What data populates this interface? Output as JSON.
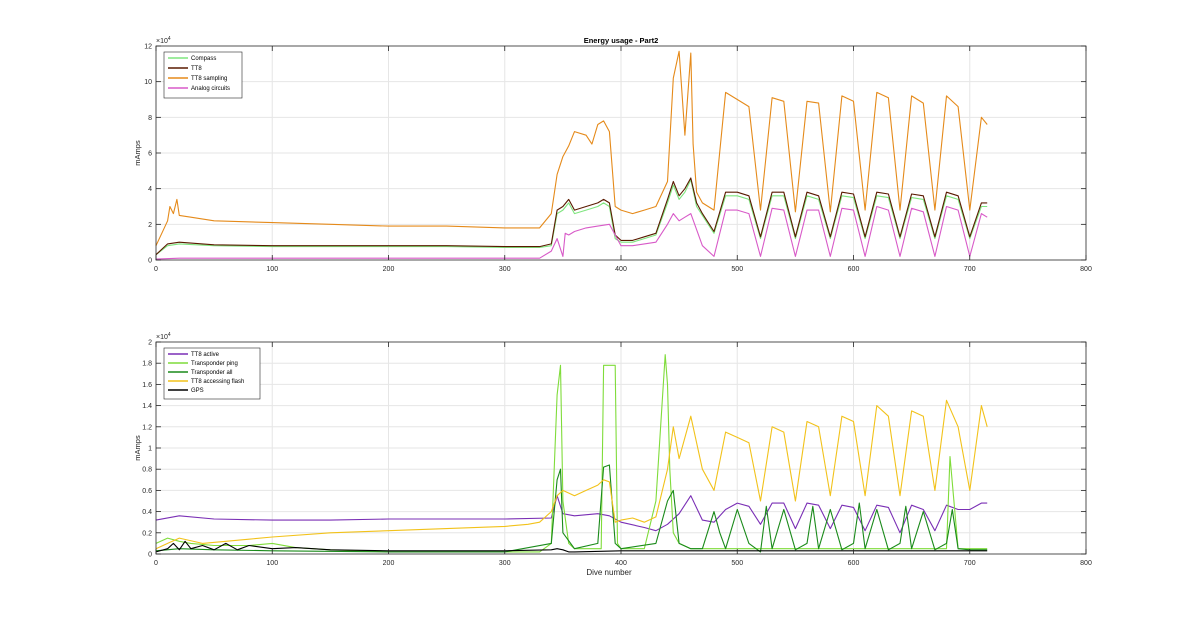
{
  "chart_data": [
    {
      "type": "line",
      "title": "Energy usage - Part2",
      "xlabel": "",
      "ylabel": "mAmps",
      "xlim": [
        0,
        800
      ],
      "ylim": [
        0,
        12
      ],
      "y_multiplier_label": "×10",
      "y_multiplier_exp": "4",
      "grid": true,
      "legend_position": "top-left",
      "xticks": [
        0,
        100,
        200,
        300,
        400,
        500,
        600,
        700,
        800
      ],
      "yticks": [
        0,
        2,
        4,
        6,
        8,
        10,
        12
      ],
      "series": [
        {
          "name": "Compass",
          "color": "#7fe57f",
          "x": [
            0,
            10,
            20,
            50,
            100,
            150,
            200,
            250,
            300,
            330,
            340,
            345,
            350,
            355,
            360,
            370,
            380,
            385,
            390,
            395,
            400,
            410,
            420,
            430,
            440,
            445,
            450,
            455,
            460,
            465,
            470,
            480,
            490,
            500,
            510,
            520,
            530,
            540,
            550,
            560,
            570,
            580,
            590,
            600,
            610,
            620,
            630,
            640,
            650,
            660,
            670,
            680,
            690,
            700,
            710,
            715
          ],
          "y": [
            0.3,
            0.8,
            0.9,
            0.8,
            0.75,
            0.75,
            0.75,
            0.75,
            0.7,
            0.7,
            0.8,
            2.6,
            2.8,
            3.2,
            2.6,
            2.8,
            3.0,
            3.2,
            3.0,
            1.2,
            1.0,
            1.0,
            1.2,
            1.4,
            3.2,
            4.2,
            3.4,
            3.8,
            4.5,
            3.0,
            2.5,
            1.5,
            3.6,
            3.6,
            3.4,
            1.2,
            3.6,
            3.6,
            1.2,
            3.6,
            3.4,
            1.2,
            3.6,
            3.5,
            1.2,
            3.6,
            3.5,
            1.2,
            3.5,
            3.4,
            1.2,
            3.6,
            3.4,
            1.2,
            3.0,
            3.0
          ]
        },
        {
          "name": "TT8",
          "color": "#5a1a00",
          "x": [
            0,
            10,
            20,
            50,
            100,
            150,
            200,
            250,
            300,
            330,
            340,
            345,
            350,
            355,
            360,
            370,
            380,
            385,
            390,
            395,
            400,
            410,
            420,
            430,
            440,
            445,
            450,
            455,
            460,
            465,
            470,
            480,
            490,
            500,
            510,
            520,
            530,
            540,
            550,
            560,
            570,
            580,
            590,
            600,
            610,
            620,
            630,
            640,
            650,
            660,
            670,
            680,
            690,
            700,
            710,
            715
          ],
          "y": [
            0.3,
            0.9,
            1.0,
            0.85,
            0.8,
            0.8,
            0.8,
            0.8,
            0.75,
            0.75,
            0.9,
            2.8,
            3.0,
            3.4,
            2.8,
            3.0,
            3.2,
            3.4,
            3.2,
            1.4,
            1.1,
            1.1,
            1.3,
            1.5,
            3.4,
            4.4,
            3.6,
            4.0,
            4.6,
            3.2,
            2.6,
            1.6,
            3.8,
            3.8,
            3.6,
            1.3,
            3.8,
            3.8,
            1.3,
            3.8,
            3.6,
            1.3,
            3.8,
            3.7,
            1.3,
            3.8,
            3.7,
            1.3,
            3.7,
            3.6,
            1.3,
            3.8,
            3.6,
            1.3,
            3.2,
            3.2
          ]
        },
        {
          "name": "TT8 sampling",
          "color": "#e58a1a",
          "x": [
            0,
            5,
            10,
            12,
            15,
            18,
            20,
            30,
            50,
            100,
            150,
            200,
            250,
            300,
            320,
            330,
            340,
            345,
            350,
            355,
            360,
            370,
            375,
            380,
            385,
            390,
            395,
            400,
            410,
            420,
            430,
            440,
            445,
            450,
            455,
            460,
            462,
            465,
            470,
            480,
            490,
            500,
            510,
            520,
            530,
            540,
            550,
            560,
            570,
            580,
            590,
            600,
            610,
            620,
            630,
            640,
            650,
            660,
            670,
            680,
            690,
            700,
            710,
            715
          ],
          "y": [
            0.8,
            1.5,
            2.2,
            3.0,
            2.6,
            3.4,
            2.5,
            2.4,
            2.2,
            2.1,
            2.0,
            1.9,
            1.9,
            1.8,
            1.8,
            1.8,
            2.6,
            4.8,
            5.8,
            6.4,
            7.2,
            7.0,
            6.5,
            7.6,
            7.8,
            7.2,
            3.0,
            2.8,
            2.6,
            2.8,
            3.0,
            4.4,
            10.2,
            11.7,
            7.0,
            11.6,
            6.5,
            3.8,
            3.2,
            2.8,
            9.4,
            9.0,
            8.6,
            2.8,
            9.1,
            8.9,
            2.7,
            8.9,
            8.8,
            2.7,
            9.2,
            8.9,
            2.8,
            9.4,
            9.1,
            2.8,
            9.2,
            8.8,
            2.8,
            9.2,
            8.6,
            2.8,
            8.0,
            7.6
          ]
        },
        {
          "name": "Analog circuits",
          "color": "#d85ac8",
          "x": [
            0,
            20,
            50,
            100,
            200,
            300,
            330,
            340,
            345,
            350,
            352,
            355,
            360,
            370,
            380,
            390,
            400,
            410,
            420,
            430,
            440,
            445,
            450,
            455,
            460,
            470,
            480,
            490,
            500,
            510,
            520,
            530,
            540,
            550,
            560,
            570,
            580,
            590,
            600,
            610,
            620,
            630,
            640,
            650,
            660,
            670,
            680,
            690,
            700,
            710,
            715
          ],
          "y": [
            0.05,
            0.1,
            0.1,
            0.1,
            0.1,
            0.1,
            0.1,
            0.5,
            1.2,
            0.2,
            1.5,
            1.4,
            1.6,
            1.8,
            1.9,
            2.0,
            0.8,
            0.8,
            0.9,
            1.0,
            2.0,
            2.6,
            2.2,
            2.4,
            2.6,
            0.8,
            0.2,
            2.8,
            2.8,
            2.6,
            0.2,
            2.9,
            2.8,
            0.2,
            2.8,
            2.8,
            0.2,
            2.9,
            2.8,
            0.2,
            3.0,
            2.8,
            0.2,
            2.9,
            2.7,
            0.2,
            3.0,
            2.8,
            0.2,
            2.6,
            2.4
          ]
        }
      ]
    },
    {
      "type": "line",
      "title": "",
      "xlabel": "Dive number",
      "ylabel": "mAmps",
      "xlim": [
        0,
        800
      ],
      "ylim": [
        0,
        2
      ],
      "y_multiplier_label": "×10",
      "y_multiplier_exp": "4",
      "grid": true,
      "legend_position": "top-left",
      "xticks": [
        0,
        100,
        200,
        300,
        400,
        500,
        600,
        700,
        800
      ],
      "yticks": [
        0,
        0.2,
        0.4,
        0.6,
        0.8,
        1,
        1.2,
        1.4,
        1.6,
        1.8,
        2
      ],
      "series": [
        {
          "name": "TT8 active",
          "color": "#7a2fb5",
          "x": [
            0,
            20,
            50,
            100,
            150,
            200,
            250,
            300,
            340,
            345,
            350,
            360,
            380,
            390,
            400,
            420,
            430,
            440,
            450,
            460,
            470,
            480,
            490,
            500,
            510,
            520,
            530,
            540,
            550,
            560,
            570,
            580,
            590,
            600,
            610,
            620,
            630,
            640,
            650,
            660,
            670,
            680,
            690,
            700,
            710,
            715
          ],
          "y": [
            0.32,
            0.36,
            0.33,
            0.32,
            0.32,
            0.33,
            0.33,
            0.33,
            0.34,
            0.55,
            0.38,
            0.36,
            0.38,
            0.36,
            0.3,
            0.25,
            0.22,
            0.28,
            0.38,
            0.55,
            0.32,
            0.3,
            0.42,
            0.48,
            0.45,
            0.28,
            0.48,
            0.48,
            0.24,
            0.48,
            0.46,
            0.24,
            0.46,
            0.44,
            0.22,
            0.46,
            0.44,
            0.2,
            0.46,
            0.42,
            0.22,
            0.46,
            0.42,
            0.42,
            0.48,
            0.48
          ]
        },
        {
          "name": "Transponder ping",
          "color": "#7fdc3a",
          "x": [
            0,
            10,
            20,
            30,
            50,
            80,
            100,
            120,
            150,
            200,
            250,
            300,
            330,
            340,
            345,
            348,
            350,
            355,
            360,
            370,
            383,
            385,
            395,
            397,
            400,
            420,
            430,
            438,
            440,
            442,
            445,
            450,
            460,
            470,
            480,
            490,
            500,
            510,
            520,
            530,
            540,
            550,
            560,
            570,
            580,
            590,
            600,
            610,
            620,
            630,
            640,
            650,
            660,
            670,
            680,
            683,
            690,
            700,
            710,
            715
          ],
          "y": [
            0.1,
            0.15,
            0.12,
            0.1,
            0.08,
            0.08,
            0.1,
            0.06,
            0.04,
            0.02,
            0.02,
            0.02,
            0.02,
            0.1,
            1.5,
            1.78,
            0.5,
            0.1,
            0.05,
            0.05,
            0.05,
            1.78,
            1.78,
            0.1,
            0.05,
            0.05,
            0.5,
            1.88,
            1.6,
            0.8,
            0.2,
            0.1,
            0.05,
            0.05,
            0.05,
            0.05,
            0.05,
            0.05,
            0.05,
            0.05,
            0.05,
            0.05,
            0.05,
            0.05,
            0.05,
            0.05,
            0.05,
            0.05,
            0.05,
            0.05,
            0.05,
            0.05,
            0.05,
            0.05,
            0.05,
            0.92,
            0.05,
            0.05,
            0.05,
            0.05
          ]
        },
        {
          "name": "Transponder all",
          "color": "#1a8a1a",
          "x": [
            0,
            20,
            50,
            100,
            200,
            300,
            340,
            345,
            348,
            350,
            360,
            380,
            385,
            390,
            395,
            400,
            430,
            440,
            445,
            450,
            460,
            470,
            480,
            485,
            490,
            500,
            510,
            520,
            525,
            530,
            540,
            550,
            560,
            565,
            570,
            580,
            590,
            600,
            605,
            610,
            620,
            630,
            640,
            645,
            650,
            660,
            670,
            680,
            685,
            690,
            700,
            715
          ],
          "y": [
            0.03,
            0.05,
            0.04,
            0.03,
            0.02,
            0.02,
            0.1,
            0.7,
            0.8,
            0.2,
            0.05,
            0.1,
            0.82,
            0.84,
            0.1,
            0.05,
            0.1,
            0.5,
            0.6,
            0.1,
            0.05,
            0.05,
            0.4,
            0.2,
            0.05,
            0.42,
            0.1,
            0.02,
            0.45,
            0.05,
            0.42,
            0.04,
            0.1,
            0.45,
            0.05,
            0.42,
            0.04,
            0.1,
            0.48,
            0.05,
            0.42,
            0.04,
            0.1,
            0.45,
            0.05,
            0.4,
            0.04,
            0.1,
            0.42,
            0.05,
            0.04,
            0.04
          ]
        },
        {
          "name": "TT8 accessing flash",
          "color": "#f2c21a",
          "x": [
            0,
            10,
            20,
            40,
            60,
            80,
            100,
            150,
            200,
            250,
            300,
            320,
            330,
            340,
            345,
            350,
            360,
            370,
            380,
            385,
            390,
            395,
            400,
            410,
            420,
            430,
            440,
            445,
            450,
            460,
            470,
            480,
            490,
            500,
            510,
            520,
            530,
            540,
            550,
            560,
            570,
            580,
            590,
            600,
            610,
            620,
            630,
            640,
            650,
            660,
            670,
            680,
            690,
            700,
            710,
            715
          ],
          "y": [
            0.05,
            0.1,
            0.15,
            0.1,
            0.12,
            0.14,
            0.16,
            0.2,
            0.22,
            0.24,
            0.26,
            0.28,
            0.3,
            0.4,
            0.55,
            0.6,
            0.55,
            0.6,
            0.65,
            0.7,
            0.68,
            0.3,
            0.32,
            0.34,
            0.3,
            0.35,
            0.8,
            1.2,
            0.9,
            1.3,
            0.8,
            0.6,
            1.15,
            1.1,
            1.05,
            0.5,
            1.2,
            1.15,
            0.5,
            1.25,
            1.2,
            0.55,
            1.3,
            1.25,
            0.55,
            1.4,
            1.3,
            0.55,
            1.35,
            1.3,
            0.6,
            1.45,
            1.2,
            0.6,
            1.4,
            1.2
          ]
        },
        {
          "name": "GPS",
          "color": "#000000",
          "x": [
            0,
            10,
            15,
            20,
            25,
            30,
            40,
            50,
            60,
            70,
            80,
            100,
            120,
            150,
            200,
            250,
            300,
            340,
            345,
            350,
            355,
            360,
            400,
            450,
            500,
            550,
            600,
            650,
            700,
            715
          ],
          "y": [
            0.02,
            0.05,
            0.1,
            0.04,
            0.12,
            0.05,
            0.08,
            0.04,
            0.1,
            0.04,
            0.08,
            0.05,
            0.06,
            0.04,
            0.03,
            0.03,
            0.03,
            0.04,
            0.05,
            0.04,
            0.02,
            0.02,
            0.03,
            0.03,
            0.03,
            0.03,
            0.03,
            0.03,
            0.03,
            0.03
          ]
        }
      ]
    }
  ]
}
